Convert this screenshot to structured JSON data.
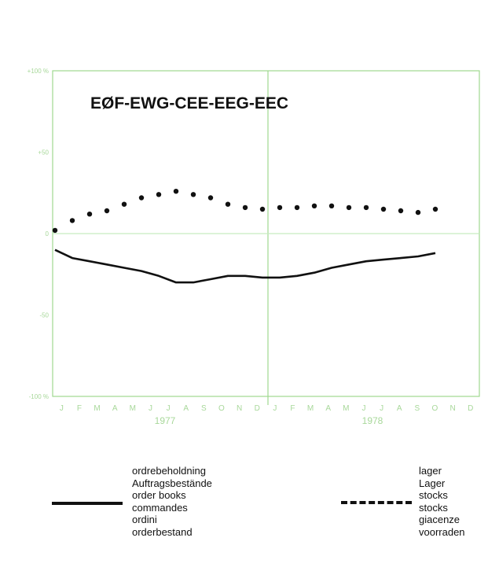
{
  "chart_data": {
    "type": "line",
    "title": "EØF-EWG-CEE-EEG-EEC",
    "xlabel": "",
    "ylabel": "",
    "ylim": [
      -100,
      100
    ],
    "yticks": [
      {
        "value": 100,
        "label": "+100 %"
      },
      {
        "value": 50,
        "label": "+50"
      },
      {
        "value": 0,
        "label": "0"
      },
      {
        "value": -50,
        "label": "-50"
      },
      {
        "value": -100,
        "label": "-100 %"
      }
    ],
    "month_labels": [
      "J",
      "F",
      "M",
      "A",
      "M",
      "J",
      "J",
      "A",
      "S",
      "O",
      "N",
      "D",
      "J",
      "F",
      "M",
      "A",
      "M",
      "J",
      "J",
      "A",
      "S",
      "O",
      "N",
      "D"
    ],
    "year_labels": [
      "1977",
      "1978"
    ],
    "grid": false,
    "legend_position": "bottom",
    "series": [
      {
        "name": "ordrebeholdning",
        "labels": [
          "ordrebeholdning",
          "Auftragsbestände",
          "order books",
          "commandes",
          "ordini",
          "orderbestand"
        ],
        "style": "solid",
        "x": [
          0,
          1,
          2,
          3,
          4,
          5,
          6,
          7,
          8,
          9,
          10,
          11,
          12,
          13,
          14,
          15,
          16,
          17,
          18,
          19,
          20,
          21,
          22
        ],
        "values": [
          -10,
          -15,
          -17,
          -19,
          -21,
          -23,
          -26,
          -30,
          -30,
          -28,
          -26,
          -26,
          -27,
          -27,
          -26,
          -24,
          -21,
          -19,
          -17,
          -16,
          -15,
          -14,
          -12
        ]
      },
      {
        "name": "lager",
        "labels": [
          "lager",
          "Lager",
          "stocks",
          "stocks",
          "giacenze",
          "voorraden"
        ],
        "style": "dotted",
        "x": [
          0,
          1,
          2,
          3,
          4,
          5,
          6,
          7,
          8,
          9,
          10,
          11,
          12,
          13,
          14,
          15,
          16,
          17,
          18,
          19,
          20,
          21,
          22
        ],
        "values": [
          2,
          8,
          12,
          14,
          18,
          22,
          24,
          26,
          24,
          22,
          18,
          16,
          15,
          16,
          16,
          17,
          17,
          16,
          16,
          15,
          14,
          13,
          15
        ]
      }
    ]
  },
  "colors": {
    "frame": "#9fd98f",
    "axis_text": "#a8d89a",
    "zero_line": "#c8ecc0",
    "series": "#111111"
  }
}
